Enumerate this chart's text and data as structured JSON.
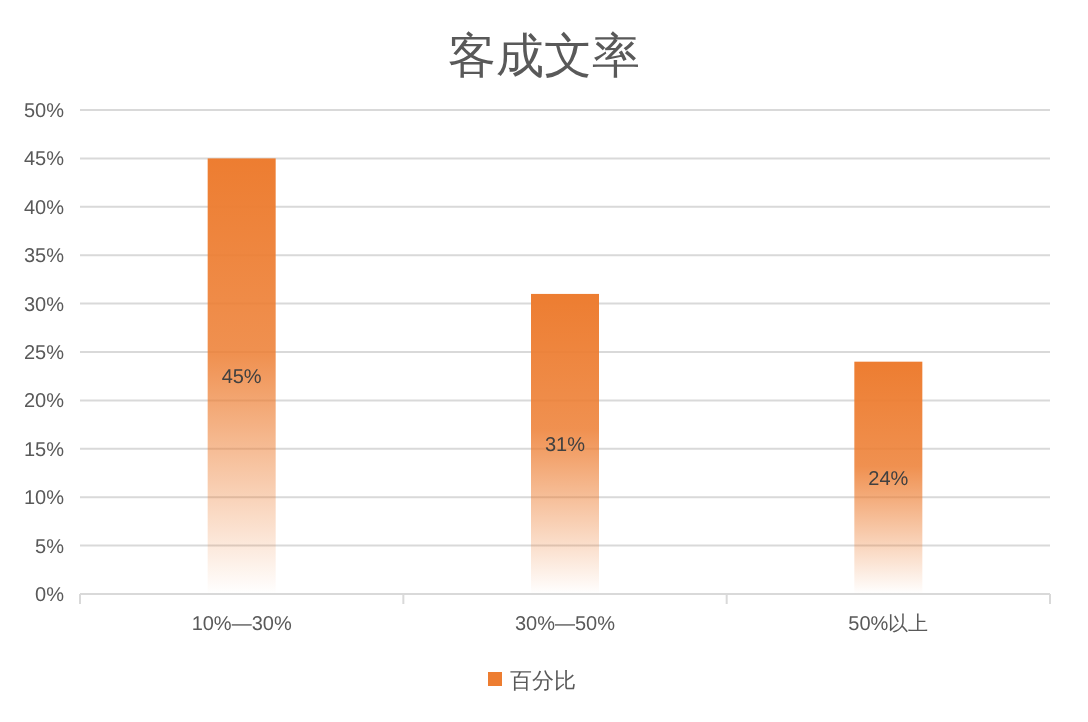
{
  "chart_data": {
    "type": "bar",
    "title": "客成文率",
    "categories": [
      "10%—30%",
      "30%—50%",
      "50%以上"
    ],
    "series": [
      {
        "name": "百分比",
        "color": "#ed7d31",
        "values": [
          45,
          31,
          24
        ],
        "value_labels": [
          "45%",
          "31%",
          "24%"
        ]
      }
    ],
    "ylim": [
      0,
      50
    ],
    "yticks": [
      {
        "value": 0,
        "label": "0%"
      },
      {
        "value": 5,
        "label": "5%"
      },
      {
        "value": 10,
        "label": "10%"
      },
      {
        "value": 15,
        "label": "15%"
      },
      {
        "value": 20,
        "label": "20%"
      },
      {
        "value": 25,
        "label": "25%"
      },
      {
        "value": 30,
        "label": "30%"
      },
      {
        "value": 35,
        "label": "35%"
      },
      {
        "value": 40,
        "label": "40%"
      },
      {
        "value": 45,
        "label": "45%"
      },
      {
        "value": 50,
        "label": "50%"
      }
    ],
    "grid": "y",
    "legend": "bottom"
  }
}
